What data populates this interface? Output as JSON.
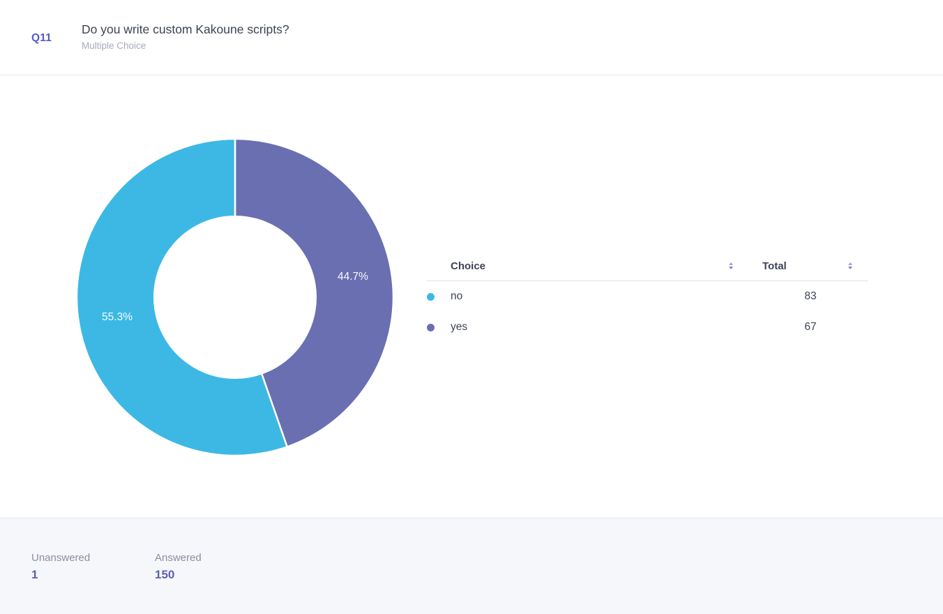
{
  "header": {
    "question_number": "Q11",
    "title": "Do you write custom Kakoune scripts?",
    "question_type": "Multiple Choice"
  },
  "chart_data": {
    "type": "pie",
    "subtype": "donut",
    "title": "Do you write custom Kakoune scripts?",
    "categories": [
      "no",
      "yes"
    ],
    "values": [
      83,
      67
    ],
    "total_responses": 150,
    "slices": [
      {
        "label": "no",
        "value": 83,
        "percent_label": "55.3%",
        "color": "#3db8e5"
      },
      {
        "label": "yes",
        "value": 67,
        "percent_label": "44.7%",
        "color": "#6a6fb2"
      }
    ],
    "draw_order_from_top_clockwise": [
      "yes",
      "no"
    ],
    "inner_radius_ratio": 0.51,
    "slice_gap_stroke": "#ffffff",
    "labels_color": "#ffffff",
    "legend_position": "table-right"
  },
  "table": {
    "columns": [
      {
        "label": "Choice",
        "sortable": true
      },
      {
        "label": "Total",
        "sortable": true
      }
    ],
    "rows": [
      {
        "choice": "no",
        "total": "83",
        "dot_color": "#3db8e5"
      },
      {
        "choice": "yes",
        "total": "67",
        "dot_color": "#6a6fb2"
      }
    ]
  },
  "footer": {
    "stats": [
      {
        "label": "Unanswered",
        "value": "1"
      },
      {
        "label": "Answered",
        "value": "150"
      }
    ]
  },
  "colors": {
    "accent_purple": "#565cc0",
    "slice_cyan": "#3db8e5",
    "slice_purple": "#6a6fb2",
    "text_dark": "#3d4254",
    "text_gray": "#a7abba",
    "divider": "#e4e5ec",
    "footer_bg": "#f6f7fa",
    "footer_label": "#8b8f9c",
    "footer_value": "#5c61b5"
  }
}
